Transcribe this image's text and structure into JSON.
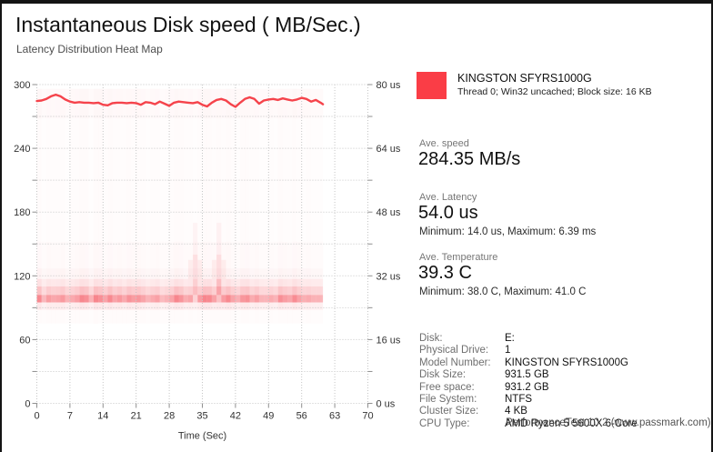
{
  "window": {
    "title": "Instantaneous Disk speed ( MB/Sec.)",
    "subtitle": "Latency Distribution Heat Map"
  },
  "legend": {
    "device": "KINGSTON SFYRS1000G",
    "detail": "Thread 0; Win32 uncached; Block size: 16 KB",
    "color": "#fa3d46"
  },
  "stats": [
    {
      "label": "Ave. speed",
      "value": "284.35 MB/s",
      "minmax": ""
    },
    {
      "label": "Ave. Latency",
      "value": "54.0 us",
      "minmax": "Minimum: 14.0 us, Maximum: 6.39 ms"
    },
    {
      "label": "Ave. Temperature",
      "value": "39.3 C",
      "minmax": "Minimum: 38.0 C, Maximum: 41.0 C"
    }
  ],
  "info": {
    "rows": [
      [
        "Disk:",
        "E:"
      ],
      [
        "Physical Drive:",
        "1"
      ],
      [
        "Model Number:",
        "KINGSTON SFYRS1000G"
      ],
      [
        "Disk Size:",
        "931.5 GB"
      ],
      [
        "Free space:",
        "931.2 GB"
      ],
      [
        "File System:",
        "NTFS"
      ],
      [
        "Cluster Size:",
        "4 KB"
      ],
      [
        "CPU Type:",
        "AMD Ryzen 5 5600X 6-Core"
      ]
    ]
  },
  "watermark": "PerformanceTest 10.2 (www.passmark.com)",
  "chart_data": {
    "type": "line+heatmap",
    "title": "Instantaneous Disk speed ( MB/Sec.)",
    "subtitle": "Latency Distribution Heat Map",
    "xlabel": "Time (Sec)",
    "x_ticks": [
      0,
      7,
      14,
      21,
      28,
      35,
      42,
      49,
      56,
      63,
      70
    ],
    "x_range": [
      0,
      70
    ],
    "y_left_ticks": [
      0,
      60,
      120,
      180,
      240,
      300
    ],
    "y_left_range": [
      0,
      300
    ],
    "y_grid_step": 30,
    "y_right_labels": [
      "0 us",
      "16 us",
      "32 us",
      "48 us",
      "64 us",
      "80 us"
    ],
    "y_right_range_us": [
      0,
      80
    ],
    "grid": "dotted",
    "legend_position": "top-right",
    "line_color": "#f5434b",
    "heat_color": "#f3414c",
    "series": [
      {
        "name": "KINGSTON SFYRS1000G",
        "unit": "MB/s",
        "average": 284.35,
        "points": [
          [
            0,
            284.5
          ],
          [
            1,
            285
          ],
          [
            2,
            286.5
          ],
          [
            3,
            289
          ],
          [
            4,
            290.5
          ],
          [
            5,
            289
          ],
          [
            6,
            286
          ],
          [
            7,
            284
          ],
          [
            8,
            283
          ],
          [
            9,
            283.5
          ],
          [
            10,
            283
          ],
          [
            11,
            283
          ],
          [
            12,
            282.5
          ],
          [
            13,
            283
          ],
          [
            14,
            281
          ],
          [
            15,
            280.5
          ],
          [
            16,
            282.5
          ],
          [
            17,
            283
          ],
          [
            18,
            283
          ],
          [
            19,
            282.5
          ],
          [
            20,
            283
          ],
          [
            21,
            282.5
          ],
          [
            22,
            281
          ],
          [
            23,
            283.5
          ],
          [
            24,
            283
          ],
          [
            25,
            281.5
          ],
          [
            26,
            284
          ],
          [
            27,
            282
          ],
          [
            28,
            280
          ],
          [
            29,
            283
          ],
          [
            30,
            284
          ],
          [
            31,
            283.5
          ],
          [
            32,
            283
          ],
          [
            33,
            282.5
          ],
          [
            34,
            283.5
          ],
          [
            35,
            281
          ],
          [
            36,
            279.5
          ],
          [
            37,
            283
          ],
          [
            38,
            285.5
          ],
          [
            39,
            286.5
          ],
          [
            40,
            285
          ],
          [
            41,
            281.5
          ],
          [
            42,
            279
          ],
          [
            43,
            283
          ],
          [
            44,
            286.5
          ],
          [
            45,
            288
          ],
          [
            46,
            286.5
          ],
          [
            47,
            282
          ],
          [
            48,
            285
          ],
          [
            49,
            286
          ],
          [
            50,
            286.5
          ],
          [
            51,
            285.5
          ],
          [
            52,
            287
          ],
          [
            53,
            286
          ],
          [
            54,
            285
          ],
          [
            55,
            286
          ],
          [
            56,
            287.5
          ],
          [
            57,
            286.5
          ],
          [
            58,
            284
          ],
          [
            59,
            285.5
          ],
          [
            60,
            283
          ],
          [
            60.5,
            281.5
          ]
        ]
      }
    ],
    "heatmap": {
      "description": "latency distribution mapped onto MB/s axis, data ends at t=60.5s",
      "t_end": 60.5,
      "bands": [
        {
          "range": [
            95,
            102
          ],
          "alpha": 0.5
        },
        {
          "range": [
            102,
            110
          ],
          "alpha": 0.26
        },
        {
          "range": [
            110,
            117
          ],
          "alpha": 0.13
        },
        {
          "range": [
            117,
            127
          ],
          "alpha": 0.055
        },
        {
          "range": [
            127,
            152
          ],
          "alpha": 0.03
        },
        {
          "range": [
            152,
            268
          ],
          "alpha": 0.016
        },
        {
          "range": [
            268,
            296
          ],
          "alpha": 0.035
        },
        {
          "range": [
            88,
            95
          ],
          "alpha": 0.1
        },
        {
          "range": [
            75,
            88
          ],
          "alpha": 0.02
        }
      ],
      "anomaly_seconds": [
        33,
        38
      ],
      "anomaly_neighbor_seconds": [
        32,
        34,
        37,
        39
      ]
    }
  }
}
